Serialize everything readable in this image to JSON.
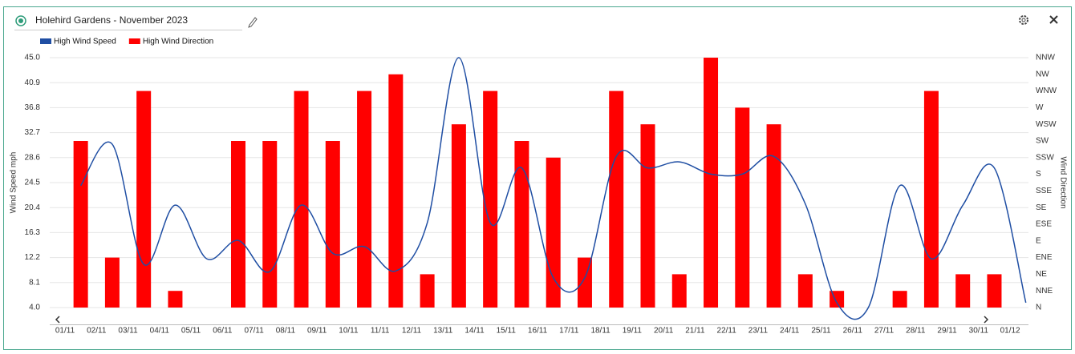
{
  "chart_data": {
    "type": "bar-line",
    "title": "Holehird Gardens - November 2023",
    "y_label": "Wind Speed mph",
    "y2_label": "Wind Direction",
    "categories": [
      "01/11",
      "02/11",
      "03/11",
      "04/11",
      "05/11",
      "06/11",
      "07/11",
      "08/11",
      "09/11",
      "10/11",
      "11/11",
      "12/11",
      "13/11",
      "14/11",
      "15/11",
      "16/11",
      "17/11",
      "18/11",
      "19/11",
      "20/11",
      "21/11",
      "22/11",
      "23/11",
      "24/11",
      "25/11",
      "26/11",
      "27/11",
      "28/11",
      "29/11",
      "30/11",
      "01/12"
    ],
    "series": [
      {
        "name": "High Wind Speed",
        "color": "#1f4ea3",
        "type": "line",
        "axis": "y",
        "values": [
          24.0,
          30.8,
          11.1,
          20.8,
          12.0,
          15.0,
          9.9,
          20.8,
          12.9,
          14.0,
          10.0,
          17.9,
          45.0,
          17.9,
          26.9,
          8.9,
          8.9,
          28.8,
          26.9,
          27.9,
          25.9,
          25.9,
          28.8,
          21.0,
          4.8,
          4.0,
          24.0,
          12.0,
          20.8,
          26.9,
          4.8
        ]
      },
      {
        "name": "High Wind Direction",
        "color": "#ff0000",
        "type": "bar",
        "axis": "y2",
        "values": [
          10,
          3,
          13,
          1,
          null,
          10,
          10,
          13,
          10,
          13,
          14,
          2,
          11,
          13,
          10,
          9,
          3,
          13,
          11,
          2,
          15,
          12,
          11,
          2,
          1,
          null,
          1,
          13,
          2,
          2,
          null
        ]
      }
    ],
    "ylim": [
      4,
      45
    ],
    "yticks": [
      {
        "value": 4,
        "label": "4.0"
      },
      8.1,
      12.2,
      16.3,
      20.4,
      24.5,
      28.6,
      32.7,
      36.8,
      40.9,
      {
        "value": 45,
        "label": "45.0"
      }
    ],
    "y2lim": [
      0,
      15
    ],
    "y2ticks": [
      {
        "value": 0,
        "label": "N"
      },
      {
        "value": 1,
        "label": "NNE"
      },
      {
        "value": 2,
        "label": "NE"
      },
      {
        "value": 3,
        "label": "ENE"
      },
      {
        "value": 4,
        "label": "E"
      },
      {
        "value": 5,
        "label": "ESE"
      },
      {
        "value": 6,
        "label": "SE"
      },
      {
        "value": 7,
        "label": "SSE"
      },
      {
        "value": 8,
        "label": "S"
      },
      {
        "value": 9,
        "label": "SSW"
      },
      {
        "value": 10,
        "label": "SW"
      },
      {
        "value": 11,
        "label": "WSW"
      },
      {
        "value": 12,
        "label": "W"
      },
      {
        "value": 13,
        "label": "WNW"
      },
      {
        "value": 14,
        "label": "NW"
      },
      {
        "value": 15,
        "label": "NNW"
      }
    ],
    "grid": true
  }
}
